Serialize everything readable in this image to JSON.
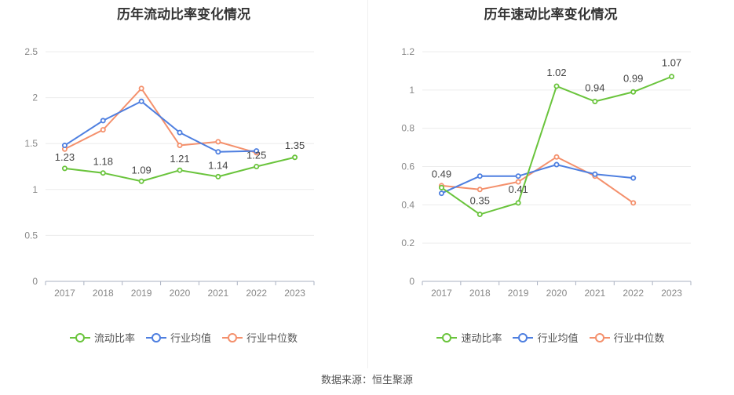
{
  "source": "数据来源：恒生聚源",
  "chart_data": [
    {
      "type": "line",
      "title": "历年流动比率变化情况",
      "categories": [
        "2017",
        "2018",
        "2019",
        "2020",
        "2021",
        "2022",
        "2023"
      ],
      "ylim": [
        0,
        2.5
      ],
      "yticks": [
        "0",
        "0.5",
        "1",
        "1.5",
        "2",
        "2.5"
      ],
      "grid": true,
      "legend_position": "bottom",
      "series": [
        {
          "name": "流动比率",
          "values": [
            1.23,
            1.18,
            1.09,
            1.21,
            1.14,
            1.25,
            1.35
          ],
          "labels": [
            "1.23",
            "1.18",
            "1.09",
            "1.21",
            "1.14",
            "1.25",
            "1.35"
          ],
          "color": "#6ac43c"
        },
        {
          "name": "行业均值",
          "values": [
            1.48,
            1.75,
            1.96,
            1.62,
            1.41,
            1.42,
            null
          ],
          "color": "#4e7fe0"
        },
        {
          "name": "行业中位数",
          "values": [
            1.44,
            1.65,
            2.1,
            1.48,
            1.52,
            1.4,
            null
          ],
          "color": "#f4906c"
        }
      ]
    },
    {
      "type": "line",
      "title": "历年速动比率变化情况",
      "categories": [
        "2017",
        "2018",
        "2019",
        "2020",
        "2021",
        "2022",
        "2023"
      ],
      "ylim": [
        0,
        1.2
      ],
      "yticks": [
        "0",
        "0.2",
        "0.4",
        "0.6",
        "0.8",
        "1",
        "1.2"
      ],
      "grid": true,
      "legend_position": "bottom",
      "series": [
        {
          "name": "速动比率",
          "values": [
            0.49,
            0.35,
            0.41,
            1.02,
            0.94,
            0.99,
            1.07
          ],
          "labels": [
            "0.49",
            "0.35",
            "0.41",
            "1.02",
            "0.94",
            "0.99",
            "1.07"
          ],
          "color": "#6ac43c"
        },
        {
          "name": "行业均值",
          "values": [
            0.46,
            0.55,
            0.55,
            0.61,
            0.56,
            0.54,
            null
          ],
          "color": "#4e7fe0"
        },
        {
          "name": "行业中位数",
          "values": [
            0.5,
            0.48,
            0.52,
            0.65,
            0.55,
            0.41,
            null
          ],
          "color": "#f4906c"
        }
      ]
    }
  ]
}
